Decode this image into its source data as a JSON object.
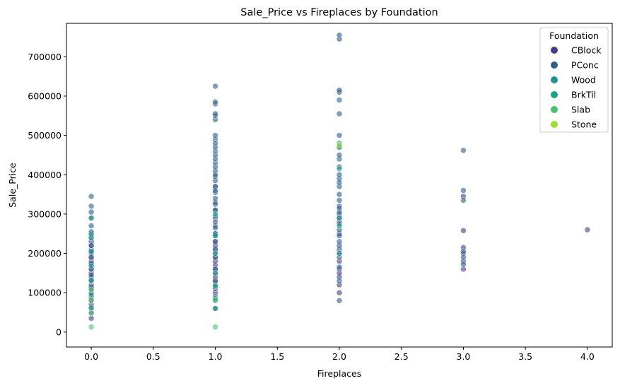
{
  "chart_data": {
    "type": "scatter",
    "title": "Sale_Price vs Fireplaces by Foundation",
    "xlabel": "Fireplaces",
    "ylabel": "Sale_Price",
    "xlim": [
      -0.2,
      4.2
    ],
    "ylim": [
      -38000,
      785000
    ],
    "x_ticks": [
      "0.0",
      "0.5",
      "1.0",
      "1.5",
      "2.0",
      "2.5",
      "3.0",
      "3.5",
      "4.0"
    ],
    "y_ticks": [
      "0",
      "100000",
      "200000",
      "300000",
      "400000",
      "500000",
      "600000",
      "700000"
    ],
    "grid": false,
    "legend": {
      "title": "Foundation",
      "placement": "top-right",
      "entries": [
        "CBlock",
        "PConc",
        "Wood",
        "BrkTil",
        "Slab",
        "Stone"
      ]
    },
    "colors": {
      "CBlock": "#433e85",
      "PConc": "#2f5f8c",
      "Wood": "#21918c",
      "BrkTil": "#1fa187",
      "Slab": "#4ac16d",
      "Stone": "#a0da39"
    },
    "series": [
      {
        "name": "CBlock",
        "x": [
          0,
          0,
          0,
          0,
          0,
          0,
          0,
          0,
          0,
          0,
          0,
          0,
          0,
          0,
          0,
          0,
          0,
          0,
          0,
          0,
          0,
          1,
          1,
          1,
          1,
          1,
          1,
          1,
          1,
          1,
          1,
          1,
          1,
          1,
          1,
          1,
          1,
          1,
          1,
          1,
          1,
          1,
          1,
          2,
          2,
          2,
          2,
          2,
          2,
          2,
          2,
          2,
          2,
          2,
          3,
          3,
          3,
          3,
          3,
          3,
          4
        ],
        "y": [
          35000,
          50000,
          60000,
          70000,
          80000,
          90000,
          100000,
          110000,
          120000,
          130000,
          140000,
          150000,
          160000,
          170000,
          180000,
          190000,
          200000,
          210000,
          220000,
          230000,
          250000,
          60000,
          80000,
          100000,
          110000,
          120000,
          130000,
          140000,
          150000,
          160000,
          170000,
          180000,
          190000,
          200000,
          210000,
          220000,
          230000,
          250000,
          270000,
          290000,
          310000,
          330000,
          370000,
          100000,
          120000,
          140000,
          150000,
          160000,
          180000,
          200000,
          220000,
          250000,
          280000,
          300000,
          160000,
          180000,
          200000,
          215000,
          258000,
          345000,
          260000
        ]
      },
      {
        "name": "PConc",
        "x": [
          0,
          0,
          0,
          0,
          0,
          0,
          0,
          0,
          0,
          0,
          0,
          0,
          0,
          0,
          0,
          1,
          1,
          1,
          1,
          1,
          1,
          1,
          1,
          1,
          1,
          1,
          1,
          1,
          1,
          1,
          1,
          1,
          1,
          1,
          1,
          1,
          1,
          1,
          1,
          1,
          1,
          1,
          1,
          1,
          1,
          1,
          1,
          1,
          1,
          1,
          1,
          2,
          2,
          2,
          2,
          2,
          2,
          2,
          2,
          2,
          2,
          2,
          2,
          2,
          2,
          2,
          2,
          2,
          2,
          2,
          2,
          2,
          2,
          2,
          2,
          2,
          2,
          2,
          2,
          2,
          2,
          3,
          3,
          3,
          3,
          3,
          3
        ],
        "y": [
          115000,
          130000,
          145000,
          160000,
          175000,
          190000,
          205000,
          220000,
          240000,
          255000,
          270000,
          290000,
          305000,
          320000,
          345000,
          90000,
          130000,
          160000,
          190000,
          210000,
          230000,
          250000,
          265000,
          280000,
          295000,
          310000,
          325000,
          340000,
          355000,
          370000,
          385000,
          395000,
          410000,
          420000,
          430000,
          440000,
          450000,
          460000,
          470000,
          490000,
          500000,
          540000,
          550000,
          555000,
          580000,
          585000,
          625000,
          480000,
          400000,
          360000,
          245000,
          80000,
          130000,
          165000,
          190000,
          210000,
          230000,
          245000,
          260000,
          275000,
          290000,
          305000,
          320000,
          335000,
          350000,
          370000,
          390000,
          400000,
          420000,
          440000,
          450000,
          470000,
          500000,
          555000,
          590000,
          610000,
          615000,
          745000,
          755000,
          380000,
          315000,
          172000,
          190000,
          205000,
          335000,
          360000,
          462000
        ]
      },
      {
        "name": "Wood",
        "x": [
          0,
          1,
          2
        ],
        "y": [
          240000,
          115000,
          290000
        ]
      },
      {
        "name": "BrkTil",
        "x": [
          0,
          0,
          0,
          0,
          0,
          0,
          0,
          1,
          1,
          1,
          1,
          1,
          1,
          1,
          2,
          2,
          2,
          2,
          2
        ],
        "y": [
          62000,
          96000,
          132000,
          168000,
          205000,
          248000,
          290000,
          60000,
          85000,
          118000,
          150000,
          200000,
          245000,
          300000,
          200000,
          270000,
          415000,
          470000,
          480000
        ]
      },
      {
        "name": "Slab",
        "x": [
          0,
          0,
          0,
          0,
          1,
          1
        ],
        "y": [
          13000,
          48000,
          82000,
          108000,
          13000,
          82000
        ]
      },
      {
        "name": "Stone",
        "x": [
          2
        ],
        "y": [
          475000
        ]
      }
    ]
  }
}
